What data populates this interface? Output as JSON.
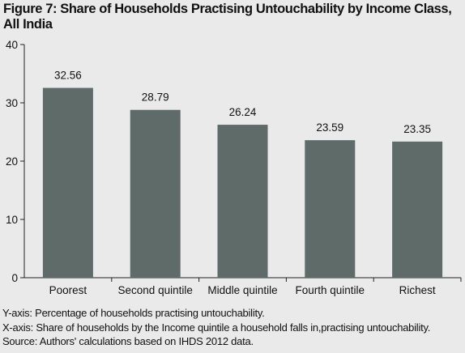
{
  "title": {
    "line1": "Figure 7: Share of Households Practising Untouchability by Income Class,",
    "line2": "All India"
  },
  "chart_data": {
    "type": "bar",
    "title": "Figure 7: Share of Households Practising Untouchability by Income Class, All India",
    "categories": [
      "Poorest",
      "Second quintile",
      "Middle quintile",
      "Fourth quintile",
      "Richest"
    ],
    "values": [
      32.56,
      28.79,
      26.24,
      23.59,
      23.35
    ],
    "value_labels": [
      "32.56",
      "28.79",
      "26.24",
      "23.59",
      "23.35"
    ],
    "yticks": [
      0,
      10,
      20,
      30,
      40
    ],
    "ylim": [
      0,
      40
    ],
    "grid": false,
    "legend": "none",
    "bar_color": "#5f6b69",
    "background_color": "#eaeaea"
  },
  "notes": {
    "yaxis": "Y-axis: Percentage of households practising untouchability.",
    "xaxis": "X-axis: Share of households by the Income quintile a household falls in,practising untouchability.",
    "source": "Source: Authors' calculations based on IHDS 2012 data."
  }
}
